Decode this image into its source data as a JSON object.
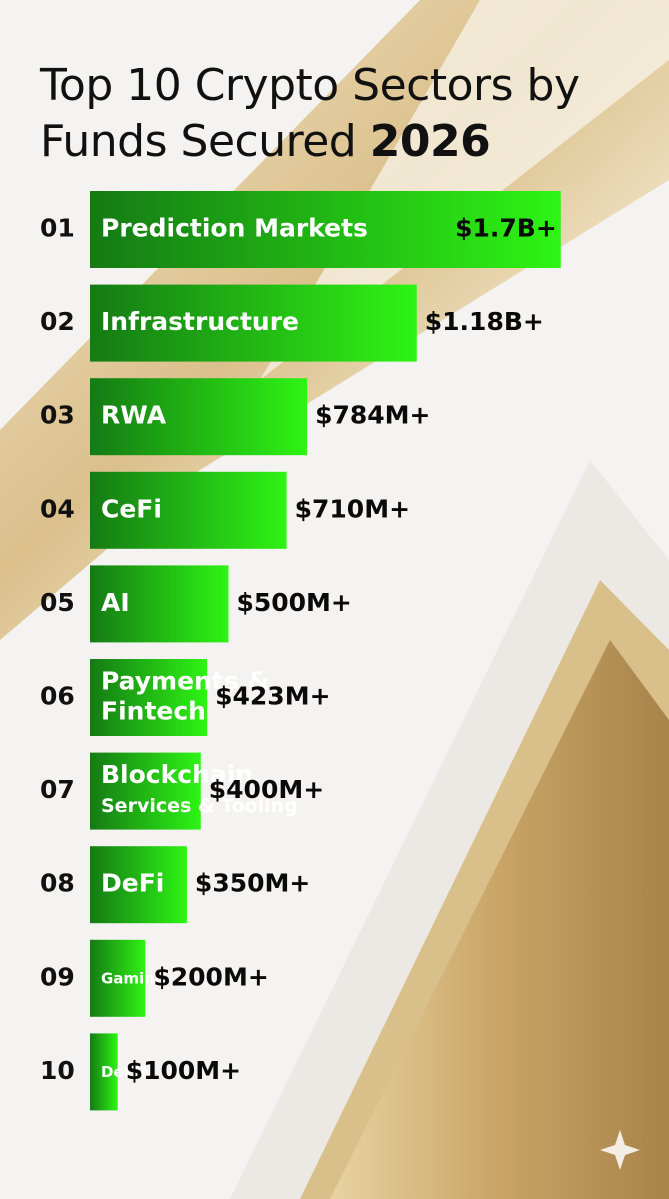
{
  "chart_data": {
    "type": "bar",
    "orientation": "horizontal",
    "title": "Top 10 Crypto Sectors by Funds Secured",
    "title_year": "2026",
    "ranks": [
      "01",
      "02",
      "03",
      "04",
      "05",
      "06",
      "07",
      "08",
      "09",
      "10"
    ],
    "categories": [
      "Prediction Markets",
      "Infrastructure",
      "RWA",
      "CeFi",
      "AI",
      "Payments &\nFintech",
      "Blockchain\nServices & Tooling",
      "DeFi",
      "Gaming",
      "DePIN"
    ],
    "values": [
      1700,
      1180,
      784,
      710,
      500,
      423,
      400,
      350,
      200,
      100
    ],
    "value_labels": [
      "$1.7B+",
      "$1.18B+",
      "$784M+",
      "$710M+",
      "$500M+",
      "$423M+",
      "$400M+",
      "$350M+",
      "$200M+",
      "$100M+"
    ],
    "color": "#2ef414",
    "xlim": [
      -250,
      1700
    ]
  }
}
